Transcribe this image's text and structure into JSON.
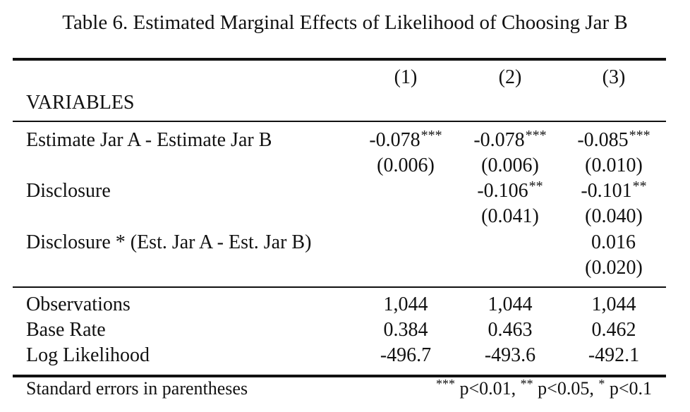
{
  "title": "Table 6.  Estimated Marginal Effects of Likelihood of Choosing Jar B",
  "columns": [
    "(1)",
    "(2)",
    "(3)"
  ],
  "variables_header": "VARIABLES",
  "rows": [
    {
      "label": "Estimate Jar A - Estimate Jar B",
      "coef": [
        {
          "value": "-0.078",
          "stars": "***"
        },
        {
          "value": "-0.078",
          "stars": "***"
        },
        {
          "value": "-0.085",
          "stars": "***"
        }
      ],
      "se": [
        "(0.006)",
        "(0.006)",
        "(0.010)"
      ]
    },
    {
      "label": "Disclosure",
      "coef": [
        {
          "value": "",
          "stars": ""
        },
        {
          "value": "-0.106",
          "stars": "**"
        },
        {
          "value": "-0.101",
          "stars": "**"
        }
      ],
      "se": [
        "",
        "(0.041)",
        "(0.040)"
      ]
    },
    {
      "label": "Disclosure * (Est. Jar A - Est. Jar B)",
      "coef": [
        {
          "value": "",
          "stars": ""
        },
        {
          "value": "",
          "stars": ""
        },
        {
          "value": "0.016",
          "stars": ""
        }
      ],
      "se": [
        "",
        "",
        "(0.020)"
      ]
    }
  ],
  "stats": [
    {
      "label": "Observations",
      "values": [
        "1,044",
        "1,044",
        "1,044"
      ]
    },
    {
      "label": "Base Rate",
      "values": [
        "0.384",
        "0.463",
        "0.462"
      ]
    },
    {
      "label": "Log Likelihood",
      "values": [
        "-496.7",
        "-493.6",
        "-492.1"
      ]
    }
  ],
  "notes": {
    "left": "Standard errors in parentheses",
    "sig": [
      {
        "stars": "***",
        "text": " p<0.01, "
      },
      {
        "stars": "**",
        "text": " p<0.05, "
      },
      {
        "stars": "*",
        "text": " p<0.1"
      }
    ]
  }
}
